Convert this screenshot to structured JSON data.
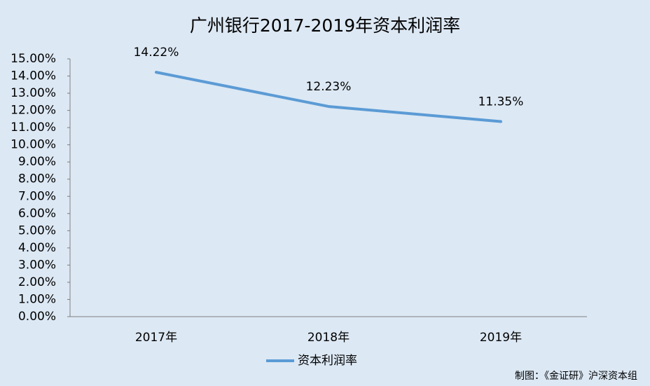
{
  "chart_data": {
    "type": "line",
    "title": "广州银行2017-2019年资本利润率",
    "categories": [
      "2017年",
      "2018年",
      "2019年"
    ],
    "series": [
      {
        "name": "资本利润率",
        "color": "#5b9bd5",
        "values": [
          14.22,
          12.23,
          11.35
        ],
        "value_labels": [
          "14.22%",
          "12.23%",
          "11.35%"
        ]
      }
    ],
    "ylim": [
      0,
      15
    ],
    "yticks": [
      {
        "value": 0,
        "label": "0.00%"
      },
      {
        "value": 1,
        "label": "1.00%"
      },
      {
        "value": 2,
        "label": "2.00%"
      },
      {
        "value": 3,
        "label": "3.00%"
      },
      {
        "value": 4,
        "label": "4.00%"
      },
      {
        "value": 5,
        "label": "5.00%"
      },
      {
        "value": 6,
        "label": "6.00%"
      },
      {
        "value": 7,
        "label": "7.00%"
      },
      {
        "value": 8,
        "label": "8.00%"
      },
      {
        "value": 9,
        "label": "9.00%"
      },
      {
        "value": 10,
        "label": "10.00%"
      },
      {
        "value": 11,
        "label": "11.00%"
      },
      {
        "value": 12,
        "label": "12.00%"
      },
      {
        "value": 13,
        "label": "13.00%"
      },
      {
        "value": 14,
        "label": "14.00%"
      },
      {
        "value": 15,
        "label": "15.00%"
      }
    ],
    "grid": false,
    "legend": "bottom",
    "source": "制图：《金证研》沪深资本组"
  }
}
